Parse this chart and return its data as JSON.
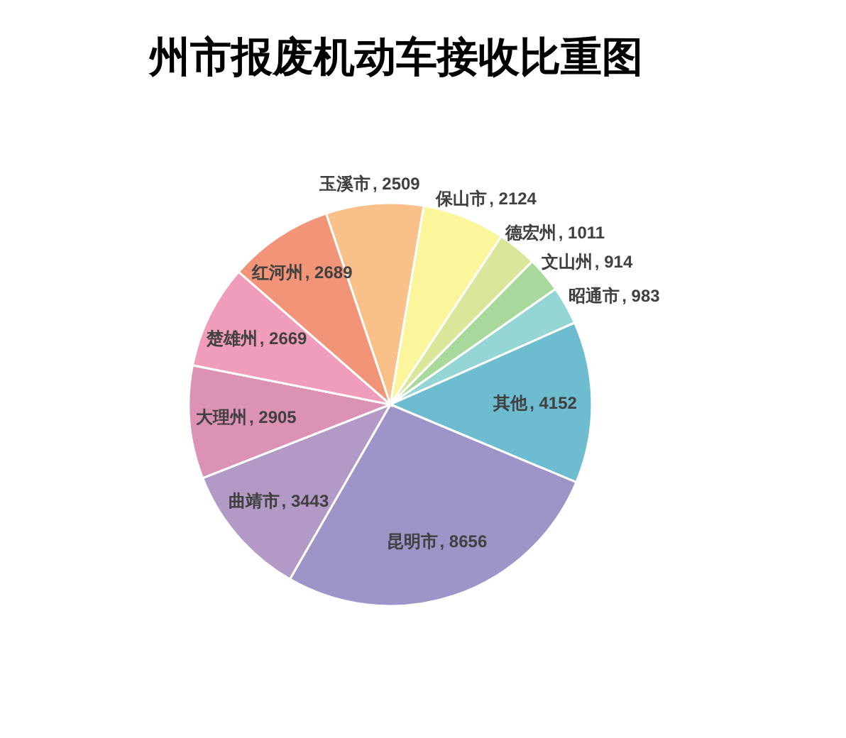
{
  "chart_data": {
    "type": "pie",
    "title": "州市报废机动车接收比重图",
    "categories": [
      "玉溪市",
      "保山市",
      "德宏州",
      "文山州",
      "昭通市",
      "其他",
      "昆明市",
      "曲靖市",
      "大理州",
      "楚雄州",
      "红河州"
    ],
    "values": [
      2509,
      2124,
      1011,
      914,
      983,
      4152,
      8656,
      3443,
      2905,
      2669,
      2689
    ],
    "value_labels": [
      ", 2509",
      ", 2124",
      ", 1011",
      ", 914",
      ", 983",
      ", 4152",
      ", 8656",
      ", 3443",
      ", 2905",
      ", 2669",
      ", 2689"
    ],
    "colors": [
      "#f9c08a",
      "#fbf59b",
      "#dbe69a",
      "#a8d89a",
      "#94d6d4",
      "#6dbcd0",
      "#9e94c8",
      "#b39ac6",
      "#dc92b4",
      "#f09cbc",
      "#f29478"
    ]
  }
}
